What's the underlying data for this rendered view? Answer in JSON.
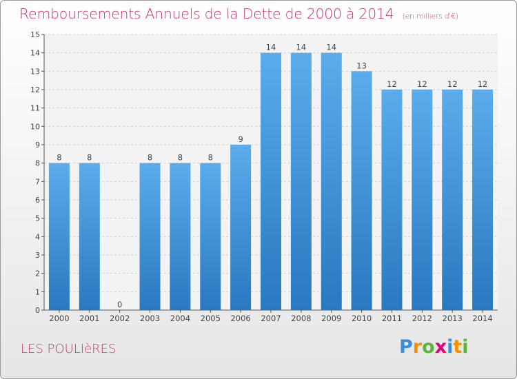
{
  "header": {
    "title": "Remboursements Annuels de la Dette de 2000 à 2014",
    "subtitle": "(en milliers d'€)"
  },
  "footer": {
    "commune": "LES POULIèRES",
    "logo_letters": [
      "P",
      "r",
      "o",
      "x",
      "i",
      "t",
      "i"
    ],
    "logo_colors": [
      "#3a8fd8",
      "#f39200",
      "#5bb53a",
      "#e2007a",
      "#3a8fd8",
      "#f39200",
      "#5bb53a"
    ]
  },
  "chart_data": {
    "type": "bar",
    "categories": [
      "2000",
      "2001",
      "2002",
      "2003",
      "2004",
      "2005",
      "2006",
      "2007",
      "2008",
      "2009",
      "2010",
      "2011",
      "2012",
      "2013",
      "2014"
    ],
    "values": [
      8,
      8,
      0,
      8,
      8,
      8,
      9,
      14,
      14,
      14,
      13,
      12,
      12,
      12,
      12
    ],
    "title": "Remboursements Annuels de la Dette de 2000 à 2014",
    "xlabel": "",
    "ylabel": "",
    "ylim": [
      0,
      15
    ],
    "yticks": [
      0,
      1,
      2,
      3,
      4,
      5,
      6,
      7,
      8,
      9,
      10,
      11,
      12,
      13,
      14,
      15
    ],
    "grid": true,
    "bar_color": "#4d9fe0",
    "bar_color_dark": "#2a78c0"
  }
}
